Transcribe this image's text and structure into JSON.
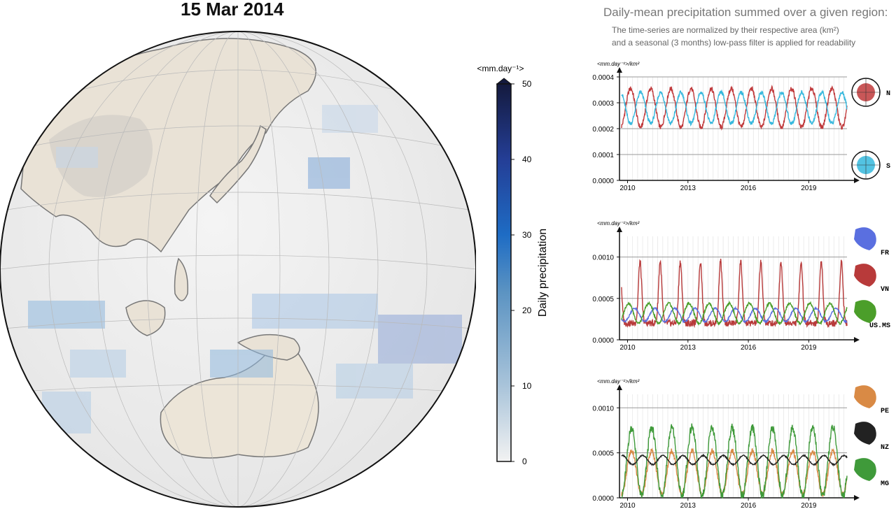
{
  "date_title": "15 Mar 2014",
  "right_title": "Daily-mean precipitation summed over a given region:",
  "right_sub1": "The time-series are normalized by their respective area (km²)",
  "right_sub2": "and a seasonal (3 months) low-pass filter is applied for readability",
  "colorbar": {
    "unit": "<mm.day⁻¹>",
    "label": "Daily precipitation",
    "ticks": [
      "50",
      "40",
      "30",
      "20",
      "10",
      "0"
    ]
  },
  "panels": [
    {
      "unit": "<mm.day⁻¹>/km²",
      "yticks": [
        "0.0004",
        "0.0003",
        "0.0002",
        "0.0001",
        "0.0000"
      ],
      "xticks": [
        "2010",
        "2013",
        "2016",
        "2019"
      ],
      "regions": [
        "N",
        "S"
      ]
    },
    {
      "unit": "<mm.day⁻¹>/km²",
      "yticks": [
        "0.0010",
        "0.0005",
        "0.0000"
      ],
      "xticks": [
        "2010",
        "2013",
        "2016",
        "2019"
      ],
      "regions": [
        "FR",
        "VN",
        "US.MS"
      ]
    },
    {
      "unit": "<mm.day⁻¹>/km²",
      "yticks": [
        "0.0010",
        "0.0005",
        "0.0000"
      ],
      "xticks": [
        "2010",
        "2013",
        "2016",
        "2019"
      ],
      "regions": [
        "PE",
        "NZ",
        "MG"
      ]
    }
  ],
  "chart_data": [
    {
      "type": "line",
      "title": "",
      "ylim": [
        0,
        0.0004
      ],
      "xlim": [
        2009.6,
        2020.9
      ],
      "series": [
        {
          "name": "N",
          "color": "#c0393b",
          "kind": "sine",
          "mean": 0.00028,
          "amp": 7.5e-05,
          "phase": 0.1
        },
        {
          "name": "S",
          "color": "#35b8dd",
          "kind": "sine",
          "mean": 0.00028,
          "amp": 6e-05,
          "phase": 0.6
        }
      ]
    },
    {
      "type": "line",
      "title": "",
      "ylim": [
        0,
        0.00125
      ],
      "xlim": [
        2009.6,
        2020.9
      ],
      "series": [
        {
          "name": "VN",
          "color": "#b83a3a",
          "kind": "peak",
          "base": 0.0002,
          "peak": 0.00095,
          "phase": 0.62,
          "width": 0.16
        },
        {
          "name": "FR",
          "color": "#5a6fe0",
          "kind": "sine",
          "mean": 0.0003,
          "amp": 8e-05,
          "phase": 0.9
        },
        {
          "name": "US.MS",
          "color": "#4b9e2a",
          "kind": "sine",
          "mean": 0.00032,
          "amp": 0.00012,
          "phase": 0.2
        }
      ]
    },
    {
      "type": "line",
      "title": "",
      "ylim": [
        0,
        0.00115
      ],
      "xlim": [
        2009.6,
        2020.9
      ],
      "series": [
        {
          "name": "PE",
          "color": "#d98a45",
          "kind": "sine",
          "mean": 0.00028,
          "amp": 0.00024,
          "phase": 0.05
        },
        {
          "name": "MG",
          "color": "#3f9a3a",
          "kind": "sine",
          "mean": 0.0004,
          "amp": 0.00038,
          "phase": 0.05
        },
        {
          "name": "NZ",
          "color": "#222222",
          "kind": "sine",
          "mean": 0.00042,
          "amp": 5e-05,
          "phase": 0.5
        }
      ]
    }
  ]
}
